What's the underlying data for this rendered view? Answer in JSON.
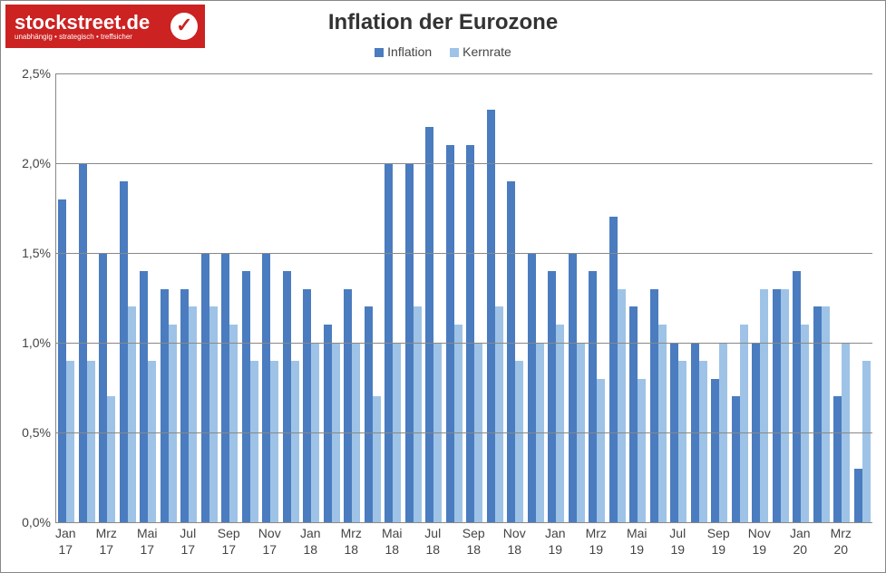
{
  "logo": {
    "text": "stockstreet.de",
    "tagline": "unabhängig • strategisch • treffsicher",
    "bg_color": "#cc2222"
  },
  "chart": {
    "type": "bar",
    "title": "Inflation der Eurozone",
    "title_fontsize": 24,
    "label_fontsize": 14,
    "background_color": "#ffffff",
    "grid_color": "#888888",
    "y_axis": {
      "min": 0,
      "max": 2.5,
      "tick_step": 0.5,
      "tick_labels": [
        "0,0%",
        "0,5%",
        "1,0%",
        "1,5%",
        "2,0%",
        "2,5%"
      ]
    },
    "series": [
      {
        "name": "Inflation",
        "color": "#4a7cbf"
      },
      {
        "name": "Kernrate",
        "color": "#9ec3e6"
      }
    ],
    "bar_width_ratio": 0.4,
    "x_labels_shown": [
      {
        "i": 0,
        "l1": "Jan",
        "l2": "17"
      },
      {
        "i": 2,
        "l1": "Mrz",
        "l2": "17"
      },
      {
        "i": 4,
        "l1": "Mai",
        "l2": "17"
      },
      {
        "i": 6,
        "l1": "Jul",
        "l2": "17"
      },
      {
        "i": 8,
        "l1": "Sep",
        "l2": "17"
      },
      {
        "i": 10,
        "l1": "Nov",
        "l2": "17"
      },
      {
        "i": 12,
        "l1": "Jan",
        "l2": "18"
      },
      {
        "i": 14,
        "l1": "Mrz",
        "l2": "18"
      },
      {
        "i": 16,
        "l1": "Mai",
        "l2": "18"
      },
      {
        "i": 18,
        "l1": "Jul",
        "l2": "18"
      },
      {
        "i": 20,
        "l1": "Sep",
        "l2": "18"
      },
      {
        "i": 22,
        "l1": "Nov",
        "l2": "18"
      },
      {
        "i": 24,
        "l1": "Jan",
        "l2": "19"
      },
      {
        "i": 26,
        "l1": "Mrz",
        "l2": "19"
      },
      {
        "i": 28,
        "l1": "Mai",
        "l2": "19"
      },
      {
        "i": 30,
        "l1": "Jul",
        "l2": "19"
      },
      {
        "i": 32,
        "l1": "Sep",
        "l2": "19"
      },
      {
        "i": 34,
        "l1": "Nov",
        "l2": "19"
      },
      {
        "i": 36,
        "l1": "Jan",
        "l2": "20"
      },
      {
        "i": 38,
        "l1": "Mrz",
        "l2": "20"
      }
    ],
    "data": [
      {
        "m": "Jan 17",
        "inflation": 1.8,
        "kernrate": 0.9
      },
      {
        "m": "Feb 17",
        "inflation": 2.0,
        "kernrate": 0.9
      },
      {
        "m": "Mrz 17",
        "inflation": 1.5,
        "kernrate": 0.7
      },
      {
        "m": "Apr 17",
        "inflation": 1.9,
        "kernrate": 1.2
      },
      {
        "m": "Mai 17",
        "inflation": 1.4,
        "kernrate": 0.9
      },
      {
        "m": "Jun 17",
        "inflation": 1.3,
        "kernrate": 1.1
      },
      {
        "m": "Jul 17",
        "inflation": 1.3,
        "kernrate": 1.2
      },
      {
        "m": "Aug 17",
        "inflation": 1.5,
        "kernrate": 1.2
      },
      {
        "m": "Sep 17",
        "inflation": 1.5,
        "kernrate": 1.1
      },
      {
        "m": "Okt 17",
        "inflation": 1.4,
        "kernrate": 0.9
      },
      {
        "m": "Nov 17",
        "inflation": 1.5,
        "kernrate": 0.9
      },
      {
        "m": "Dez 17",
        "inflation": 1.4,
        "kernrate": 0.9
      },
      {
        "m": "Jan 18",
        "inflation": 1.3,
        "kernrate": 1.0
      },
      {
        "m": "Feb 18",
        "inflation": 1.1,
        "kernrate": 1.0
      },
      {
        "m": "Mrz 18",
        "inflation": 1.3,
        "kernrate": 1.0
      },
      {
        "m": "Apr 18",
        "inflation": 1.2,
        "kernrate": 0.7
      },
      {
        "m": "Mai 18",
        "inflation": 2.0,
        "kernrate": 1.0
      },
      {
        "m": "Jun 18",
        "inflation": 2.0,
        "kernrate": 1.2
      },
      {
        "m": "Jul 18",
        "inflation": 2.2,
        "kernrate": 1.0
      },
      {
        "m": "Aug 18",
        "inflation": 2.1,
        "kernrate": 1.1
      },
      {
        "m": "Sep 18",
        "inflation": 2.1,
        "kernrate": 1.0
      },
      {
        "m": "Okt 18",
        "inflation": 2.3,
        "kernrate": 1.2
      },
      {
        "m": "Nov 18",
        "inflation": 1.9,
        "kernrate": 0.9
      },
      {
        "m": "Dez 18",
        "inflation": 1.5,
        "kernrate": 1.0
      },
      {
        "m": "Jan 19",
        "inflation": 1.4,
        "kernrate": 1.1
      },
      {
        "m": "Feb 19",
        "inflation": 1.5,
        "kernrate": 1.0
      },
      {
        "m": "Mrz 19",
        "inflation": 1.4,
        "kernrate": 0.8
      },
      {
        "m": "Apr 19",
        "inflation": 1.7,
        "kernrate": 1.3
      },
      {
        "m": "Mai 19",
        "inflation": 1.2,
        "kernrate": 0.8
      },
      {
        "m": "Jun 19",
        "inflation": 1.3,
        "kernrate": 1.1
      },
      {
        "m": "Jul 19",
        "inflation": 1.0,
        "kernrate": 0.9
      },
      {
        "m": "Aug 19",
        "inflation": 1.0,
        "kernrate": 0.9
      },
      {
        "m": "Sep 19",
        "inflation": 0.8,
        "kernrate": 1.0
      },
      {
        "m": "Okt 19",
        "inflation": 0.7,
        "kernrate": 1.1
      },
      {
        "m": "Nov 19",
        "inflation": 1.0,
        "kernrate": 1.3
      },
      {
        "m": "Dez 19",
        "inflation": 1.3,
        "kernrate": 1.3
      },
      {
        "m": "Jan 20",
        "inflation": 1.4,
        "kernrate": 1.1
      },
      {
        "m": "Feb 20",
        "inflation": 1.2,
        "kernrate": 1.2
      },
      {
        "m": "Mrz 20",
        "inflation": 0.7,
        "kernrate": 1.0
      },
      {
        "m": "Apr 20",
        "inflation": 0.3,
        "kernrate": 0.9
      }
    ]
  }
}
